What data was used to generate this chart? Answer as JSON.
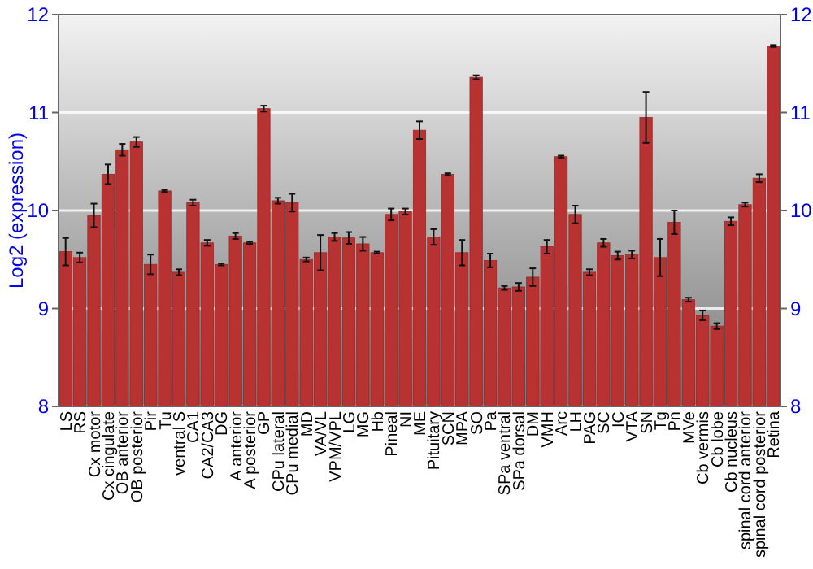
{
  "chart_data": {
    "type": "bar",
    "ylabel": "Log2 (expression)",
    "categories": [
      "LS",
      "RS",
      "Cx motor",
      "Cx cingulate",
      "OB anterior",
      "OB posterior",
      "Pir",
      "Tu",
      "ventral S",
      "CA1",
      "CA2/CA3",
      "DG",
      "A anterior",
      "A posterior",
      "GP",
      "CPu lateral",
      "CPu medial",
      "MD",
      "VA/VL",
      "VPM/VPL",
      "LG",
      "MG",
      "Hb",
      "Pineal",
      "NI",
      "ME",
      "Pituitary",
      "SCN",
      "MPA",
      "SO",
      "Pa",
      "SPa ventral",
      "SPa dorsal",
      "DM",
      "VMH",
      "Arc",
      "LH",
      "PAG",
      "SC",
      "IC",
      "VTA",
      "SN",
      "Tg",
      "Pn",
      "MVe",
      "Cb vermis",
      "Cb lobe",
      "Cb nucleus",
      "spinal cord anterior",
      "spinal cord posterior",
      "Retina"
    ],
    "values": [
      9.58,
      9.52,
      9.95,
      10.37,
      10.62,
      10.7,
      9.45,
      10.2,
      9.37,
      10.08,
      9.67,
      9.45,
      9.74,
      9.67,
      11.04,
      10.1,
      10.08,
      9.5,
      9.57,
      9.73,
      9.72,
      9.66,
      9.57,
      9.96,
      9.99,
      10.82,
      9.73,
      10.37,
      9.57,
      11.36,
      9.49,
      9.21,
      9.22,
      9.32,
      9.63,
      10.55,
      9.96,
      9.37,
      9.67,
      9.54,
      9.55,
      10.95,
      9.52,
      9.88,
      9.09,
      8.93,
      8.82,
      9.89,
      10.06,
      10.33,
      11.68
    ],
    "errors": [
      0.14,
      0.05,
      0.12,
      0.1,
      0.06,
      0.05,
      0.1,
      0.01,
      0.03,
      0.03,
      0.03,
      0.01,
      0.03,
      0.01,
      0.03,
      0.03,
      0.09,
      0.02,
      0.18,
      0.04,
      0.06,
      0.07,
      0.01,
      0.06,
      0.03,
      0.09,
      0.08,
      0.01,
      0.13,
      0.02,
      0.07,
      0.02,
      0.04,
      0.09,
      0.07,
      0.01,
      0.09,
      0.03,
      0.04,
      0.04,
      0.04,
      0.26,
      0.19,
      0.12,
      0.02,
      0.05,
      0.03,
      0.04,
      0.02,
      0.04,
      0.01
    ],
    "color": "#b83232",
    "ylim": [
      8,
      12
    ],
    "yticks": [
      8,
      9,
      10,
      11,
      12
    ],
    "y2lim": [
      8,
      12
    ],
    "y2ticks": [
      8,
      9,
      10,
      11,
      12
    ],
    "grid": "y"
  }
}
